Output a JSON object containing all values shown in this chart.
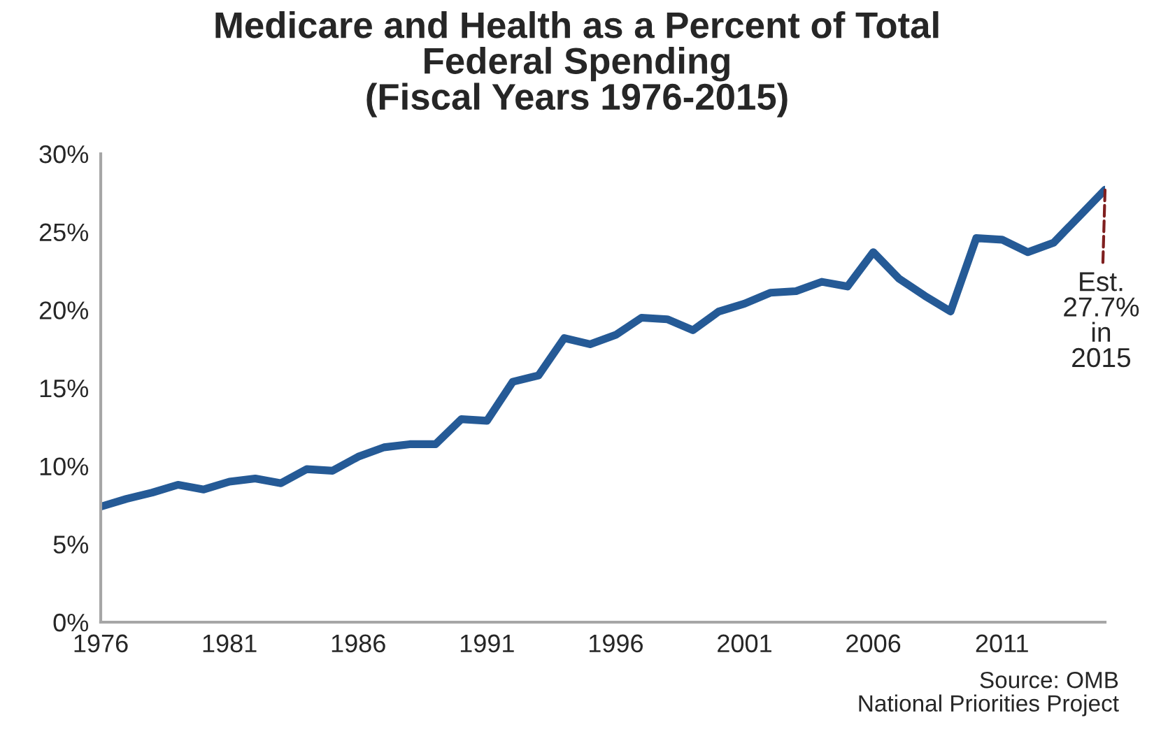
{
  "chart_data": {
    "type": "line",
    "title": "Medicare and Health as a Percent of Total\nFederal Spending\n(Fiscal Years 1976-2015)",
    "x": [
      1976,
      1977,
      1978,
      1979,
      1980,
      1981,
      1982,
      1983,
      1984,
      1985,
      1986,
      1987,
      1988,
      1989,
      1990,
      1991,
      1992,
      1993,
      1994,
      1995,
      1996,
      1997,
      1998,
      1999,
      2000,
      2001,
      2002,
      2003,
      2004,
      2005,
      2006,
      2007,
      2008,
      2009,
      2010,
      2011,
      2012,
      2013,
      2014,
      2015
    ],
    "series": [
      {
        "color": "#255a96",
        "values": [
          7.4,
          7.9,
          8.3,
          8.8,
          8.5,
          9.0,
          9.2,
          8.9,
          9.8,
          9.7,
          10.6,
          11.2,
          11.4,
          11.4,
          13.0,
          12.9,
          15.4,
          15.8,
          18.2,
          17.8,
          18.4,
          19.5,
          19.4,
          18.7,
          19.9,
          20.4,
          21.1,
          21.2,
          21.8,
          21.5,
          23.7,
          22.0,
          20.9,
          19.9,
          24.6,
          24.5,
          23.7,
          24.3,
          26.0,
          27.7
        ]
      }
    ],
    "xlim": [
      1976,
      2015
    ],
    "xticks": [
      1976,
      1981,
      1986,
      1991,
      1996,
      2001,
      2006,
      2011
    ],
    "ylim": [
      0,
      30
    ],
    "yticks": [
      {
        "value": 0,
        "label": "0%"
      },
      {
        "value": 5,
        "label": "5%"
      },
      {
        "value": 10,
        "label": "10%"
      },
      {
        "value": 15,
        "label": "15%"
      },
      {
        "value": 20,
        "label": "20%"
      },
      {
        "value": 25,
        "label": "25%"
      },
      {
        "value": 30,
        "label": "30%"
      }
    ],
    "grid": false,
    "legend": false,
    "marker": "none",
    "line_style": "solid",
    "annotations": [
      {
        "text": "Est.\n27.7%\nin\n2015",
        "x": 2015,
        "y": 27.7
      },
      "Source: OMB\nNational Priorities Project"
    ]
  }
}
